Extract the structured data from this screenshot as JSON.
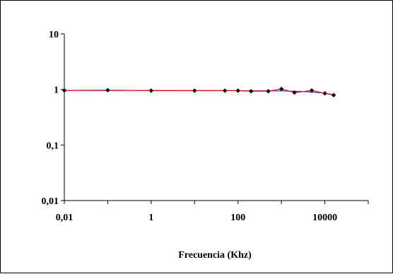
{
  "chart_data": {
    "type": "line",
    "title": "",
    "xlabel": "Frecuencia (Khz)",
    "ylabel": "",
    "x_scale": "log",
    "y_scale": "log",
    "xlim": [
      0.01,
      100000
    ],
    "ylim": [
      0.01,
      10
    ],
    "x_ticks": [
      0.01,
      1,
      100,
      10000
    ],
    "x_tick_labels": [
      "0,01",
      "1",
      "100",
      "10000"
    ],
    "y_ticks": [
      0.01,
      0.1,
      1,
      10
    ],
    "y_tick_labels": [
      "0,01",
      "0,1",
      "1",
      "10"
    ],
    "grid": false,
    "legend": "none",
    "series": [
      {
        "color": "#ff0000",
        "marker": "diamond",
        "marker_color": "#000000",
        "x": [
          0.01,
          0.1,
          1,
          10,
          50,
          100,
          200,
          500,
          1000,
          2000,
          5000,
          10000,
          16000
        ],
        "y": [
          0.96,
          0.97,
          0.95,
          0.95,
          0.95,
          0.95,
          0.93,
          0.93,
          1.02,
          0.88,
          0.96,
          0.85,
          0.79
        ]
      },
      {
        "color": "#3333cc",
        "marker": "none",
        "x": [
          0.01,
          0.1,
          1,
          10,
          100,
          1000,
          3000,
          10000,
          16000
        ],
        "y": [
          0.96,
          0.96,
          0.96,
          0.95,
          0.95,
          0.94,
          0.92,
          0.86,
          0.8
        ]
      }
    ]
  }
}
